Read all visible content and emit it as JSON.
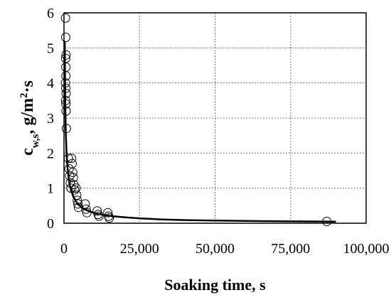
{
  "chart_data": {
    "type": "scatter",
    "title": "",
    "xlabel": "Soaking time, s",
    "ylabel": {
      "main": "c",
      "subscript": "w,s",
      "unit_prefix": ", g/m",
      "superscript": "2",
      "unit_suffix": "·s"
    },
    "xlim": [
      0,
      100000
    ],
    "ylim": [
      0,
      6
    ],
    "x_ticks": [
      0,
      25000,
      50000,
      75000,
      100000
    ],
    "x_tick_labels": [
      "0",
      "25,000",
      "50,000",
      "75,000",
      "100,000"
    ],
    "y_ticks": [
      0,
      1,
      2,
      3,
      4,
      5,
      6
    ],
    "y_tick_labels": [
      "0",
      "1",
      "2",
      "3",
      "4",
      "5",
      "6"
    ],
    "grid": "dashed",
    "legend": "none",
    "series": [
      {
        "type": "scatter",
        "marker": "open-circle",
        "points": [
          [
            500,
            5.85
          ],
          [
            600,
            5.3
          ],
          [
            700,
            4.8
          ],
          [
            550,
            4.7
          ],
          [
            600,
            4.45
          ],
          [
            650,
            4.2
          ],
          [
            500,
            4.0
          ],
          [
            600,
            3.85
          ],
          [
            700,
            3.7
          ],
          [
            550,
            3.5
          ],
          [
            650,
            3.4
          ],
          [
            700,
            3.2
          ],
          [
            800,
            2.7
          ],
          [
            1500,
            1.85
          ],
          [
            1700,
            1.55
          ],
          [
            1900,
            1.35
          ],
          [
            2100,
            1.15
          ],
          [
            2300,
            1.0
          ],
          [
            2500,
            1.85
          ],
          [
            2700,
            1.7
          ],
          [
            2900,
            1.45
          ],
          [
            3100,
            1.3
          ],
          [
            3300,
            1.1
          ],
          [
            3500,
            0.95
          ],
          [
            4000,
            1.0
          ],
          [
            4200,
            0.8
          ],
          [
            4400,
            0.65
          ],
          [
            4600,
            0.55
          ],
          [
            4800,
            0.45
          ],
          [
            7000,
            0.55
          ],
          [
            7300,
            0.4
          ],
          [
            7600,
            0.3
          ],
          [
            11000,
            0.35
          ],
          [
            11300,
            0.25
          ],
          [
            11600,
            0.2
          ],
          [
            14500,
            0.3
          ],
          [
            14800,
            0.2
          ],
          [
            15000,
            0.15
          ],
          [
            87000,
            0.05
          ]
        ]
      },
      {
        "type": "line",
        "style": "solid",
        "x": [
          250,
          400,
          600,
          900,
          1200,
          1600,
          2000,
          2500,
          3000,
          3800,
          4500,
          5500,
          6500,
          7500,
          9000,
          11000,
          13000,
          16000,
          20000,
          25000,
          32000,
          40000,
          50000,
          65000,
          80000,
          90000
        ],
        "y": [
          5.2,
          3.6,
          2.6,
          1.9,
          1.55,
          1.25,
          1.05,
          0.9,
          0.78,
          0.65,
          0.56,
          0.47,
          0.41,
          0.37,
          0.32,
          0.27,
          0.24,
          0.2,
          0.17,
          0.14,
          0.11,
          0.09,
          0.075,
          0.06,
          0.05,
          0.045
        ]
      }
    ]
  }
}
